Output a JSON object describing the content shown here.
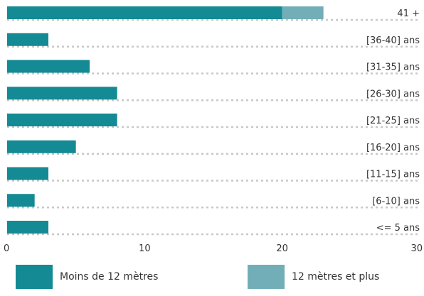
{
  "chart_data": {
    "type": "bar",
    "orientation": "horizontal",
    "stacked": true,
    "categories": [
      "41 +",
      "[36-40] ans",
      "[31-35] ans",
      "[26-30] ans",
      "[21-25] ans",
      "[16-20] ans",
      "[11-15] ans",
      "[6-10] ans",
      "<= 5 ans"
    ],
    "series": [
      {
        "name": "Moins de 12 mètres",
        "color": "#138a94",
        "values": [
          20,
          3,
          6,
          8,
          8,
          5,
          3,
          2,
          3
        ]
      },
      {
        "name": "12 mètres et plus",
        "color": "#72aeb8",
        "values": [
          3,
          0,
          0,
          0,
          0,
          0,
          0,
          0,
          0
        ]
      }
    ],
    "xlim": [
      0,
      30
    ],
    "xticks": [
      0,
      10,
      20,
      30
    ],
    "grid": "dotted row separators",
    "legend_position": "bottom"
  }
}
